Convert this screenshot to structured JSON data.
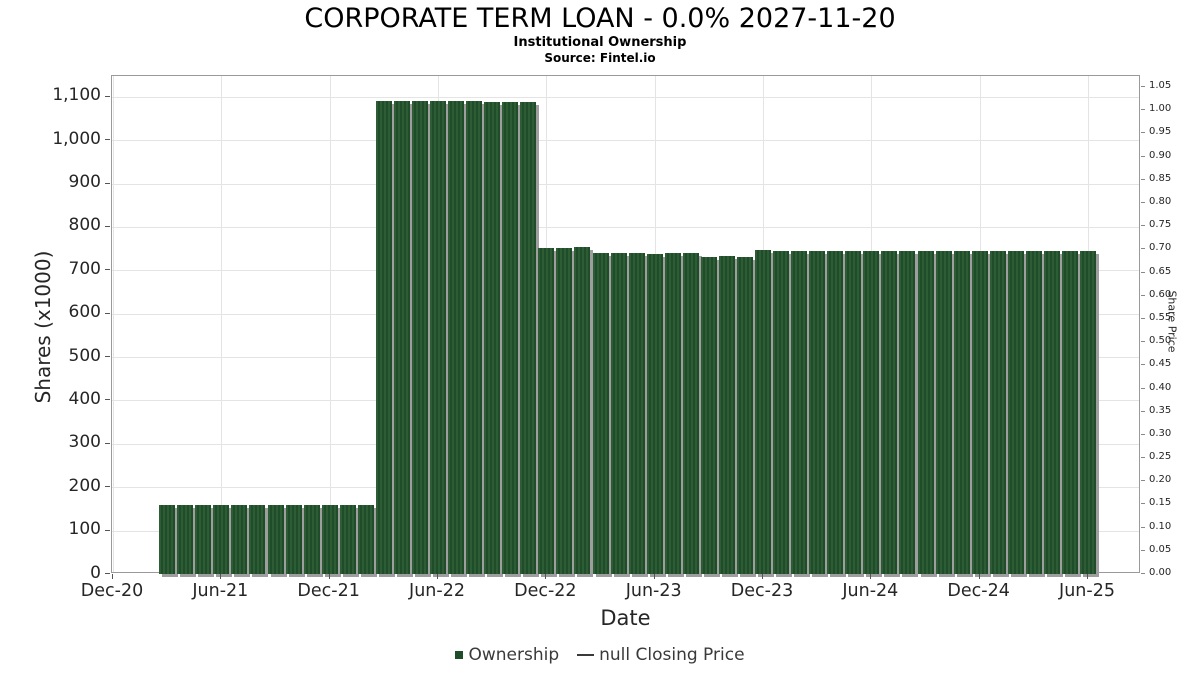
{
  "chart_data": {
    "type": "bar",
    "title": "CORPORATE TERM LOAN - 0.0% 2027-11-20",
    "subtitle": "Institutional Ownership",
    "source": "Source: Fintel.io",
    "xlabel": "Date",
    "ylabel_left": "Shares (x1000)",
    "ylabel_right": "Share Price",
    "grid": true,
    "legend_position": "bottom-center",
    "colors": {
      "bar": "#1f4d2a",
      "bar_stripe": "#2d5c35",
      "bar_shadow": "#9e9e9e",
      "gridline": "#e4e4e4",
      "axis_spine": "#9a9a9a",
      "tick_text": "#262626",
      "legend_text": "#3a3a3a"
    },
    "legend": [
      {
        "label": "Ownership",
        "marker": "square",
        "color": "#1f4d2a"
      },
      {
        "label": "null Closing Price",
        "marker": "line",
        "color": "#3a3a3a"
      }
    ],
    "x_axis": {
      "tick_labels": [
        "Dec-20",
        "Jun-21",
        "Dec-21",
        "Jun-22",
        "Dec-22",
        "Jun-23",
        "Dec-23",
        "Jun-24",
        "Dec-24",
        "Jun-25"
      ],
      "months_per_tick": 6
    },
    "y_left": {
      "range": [
        0,
        1148
      ],
      "ticks": [
        {
          "v": 0,
          "label": "0"
        },
        {
          "v": 100,
          "label": "100"
        },
        {
          "v": 200,
          "label": "200"
        },
        {
          "v": 300,
          "label": "300"
        },
        {
          "v": 400,
          "label": "400"
        },
        {
          "v": 500,
          "label": "500"
        },
        {
          "v": 600,
          "label": "600"
        },
        {
          "v": 700,
          "label": "700"
        },
        {
          "v": 800,
          "label": "800"
        },
        {
          "v": 900,
          "label": "900"
        },
        {
          "v": 1000,
          "label": "1,000"
        },
        {
          "v": 1100,
          "label": "1,100"
        }
      ]
    },
    "y_right": {
      "range": [
        0,
        1.074
      ],
      "ticks": [
        {
          "v": 0.0,
          "label": "0.00"
        },
        {
          "v": 0.05,
          "label": "0.05"
        },
        {
          "v": 0.1,
          "label": "0.10"
        },
        {
          "v": 0.15,
          "label": "0.15"
        },
        {
          "v": 0.2,
          "label": "0.20"
        },
        {
          "v": 0.25,
          "label": "0.25"
        },
        {
          "v": 0.3,
          "label": "0.30"
        },
        {
          "v": 0.35,
          "label": "0.35"
        },
        {
          "v": 0.4,
          "label": "0.40"
        },
        {
          "v": 0.45,
          "label": "0.45"
        },
        {
          "v": 0.5,
          "label": "0.50"
        },
        {
          "v": 0.55,
          "label": "0.55"
        },
        {
          "v": 0.6,
          "label": "0.60"
        },
        {
          "v": 0.65,
          "label": "0.65"
        },
        {
          "v": 0.7,
          "label": "0.70"
        },
        {
          "v": 0.75,
          "label": "0.75"
        },
        {
          "v": 0.8,
          "label": "0.80"
        },
        {
          "v": 0.85,
          "label": "0.85"
        },
        {
          "v": 0.9,
          "label": "0.90"
        },
        {
          "v": 0.95,
          "label": "0.95"
        },
        {
          "v": 1.0,
          "label": "1.00"
        },
        {
          "v": 1.05,
          "label": "1.05"
        }
      ]
    },
    "bars": [
      {
        "month": "Mar-21",
        "value": 160
      },
      {
        "month": "Apr-21",
        "value": 160
      },
      {
        "month": "May-21",
        "value": 160
      },
      {
        "month": "Jun-21",
        "value": 160
      },
      {
        "month": "Jul-21",
        "value": 160
      },
      {
        "month": "Aug-21",
        "value": 160
      },
      {
        "month": "Sep-21",
        "value": 160
      },
      {
        "month": "Oct-21",
        "value": 160
      },
      {
        "month": "Nov-21",
        "value": 160
      },
      {
        "month": "Dec-21",
        "value": 160
      },
      {
        "month": "Jan-22",
        "value": 160
      },
      {
        "month": "Feb-22",
        "value": 160
      },
      {
        "month": "Mar-22",
        "value": 1091
      },
      {
        "month": "Apr-22",
        "value": 1091
      },
      {
        "month": "May-22",
        "value": 1091
      },
      {
        "month": "Jun-22",
        "value": 1091
      },
      {
        "month": "Jul-22",
        "value": 1091
      },
      {
        "month": "Aug-22",
        "value": 1091
      },
      {
        "month": "Sep-22",
        "value": 1088
      },
      {
        "month": "Oct-22",
        "value": 1088
      },
      {
        "month": "Nov-22",
        "value": 1088
      },
      {
        "month": "Dec-22",
        "value": 752
      },
      {
        "month": "Jan-23",
        "value": 752
      },
      {
        "month": "Feb-23",
        "value": 753
      },
      {
        "month": "Mar-23",
        "value": 741
      },
      {
        "month": "Apr-23",
        "value": 741
      },
      {
        "month": "May-23",
        "value": 741
      },
      {
        "month": "Jun-23",
        "value": 738
      },
      {
        "month": "Jul-23",
        "value": 739
      },
      {
        "month": "Aug-23",
        "value": 739
      },
      {
        "month": "Sep-23",
        "value": 731
      },
      {
        "month": "Oct-23",
        "value": 732
      },
      {
        "month": "Nov-23",
        "value": 731
      },
      {
        "month": "Dec-23",
        "value": 746
      },
      {
        "month": "Jan-24",
        "value": 744
      },
      {
        "month": "Feb-24",
        "value": 744
      },
      {
        "month": "Mar-24",
        "value": 744
      },
      {
        "month": "Apr-24",
        "value": 744
      },
      {
        "month": "May-24",
        "value": 744
      },
      {
        "month": "Jun-24",
        "value": 744
      },
      {
        "month": "Jul-24",
        "value": 744
      },
      {
        "month": "Aug-24",
        "value": 744
      },
      {
        "month": "Sep-24",
        "value": 744
      },
      {
        "month": "Oct-24",
        "value": 744
      },
      {
        "month": "Nov-24",
        "value": 744
      },
      {
        "month": "Dec-24",
        "value": 744
      },
      {
        "month": "Jan-25",
        "value": 744
      },
      {
        "month": "Feb-25",
        "value": 744
      },
      {
        "month": "Mar-25",
        "value": 744
      },
      {
        "month": "Apr-25",
        "value": 744
      },
      {
        "month": "May-25",
        "value": 744
      },
      {
        "month": "Jun-25",
        "value": 744
      }
    ]
  }
}
